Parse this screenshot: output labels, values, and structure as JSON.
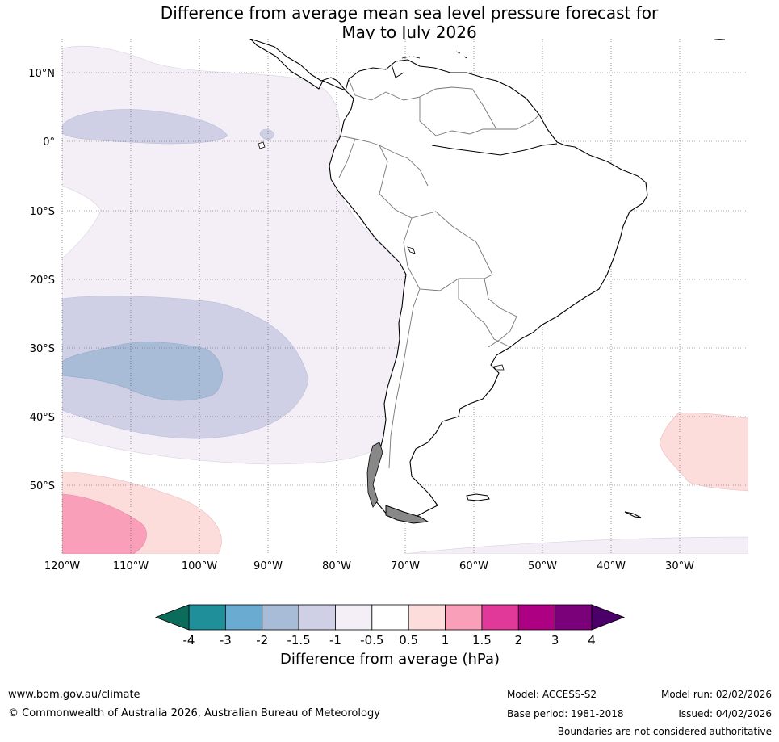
{
  "title": {
    "line1": "Difference from average mean sea level pressure forecast for",
    "line2": "May to July 2026"
  },
  "map": {
    "lat_labels": [
      "10°N",
      "0°",
      "10°S",
      "20°S",
      "30°S",
      "40°S",
      "50°S"
    ],
    "lon_labels": [
      "120°W",
      "110°W",
      "100°W",
      "90°W",
      "80°W",
      "70°W",
      "60°W",
      "50°W",
      "40°W",
      "30°W"
    ],
    "lat_values": [
      10,
      0,
      -10,
      -20,
      -30,
      -40,
      -50
    ],
    "lon_values": [
      -120,
      -110,
      -100,
      -90,
      -80,
      -70,
      -60,
      -50,
      -40,
      -30
    ],
    "extent": {
      "lon_min": -120,
      "lon_max": -20,
      "lat_min": -60,
      "lat_max": 15
    },
    "region": "South America and adjacent oceans"
  },
  "colorbar": {
    "label": "Difference from average (hPa)",
    "ticks": [
      "-4",
      "-3",
      "-2",
      "-1.5",
      "-1",
      "-0.5",
      "0.5",
      "1",
      "1.5",
      "2",
      "3",
      "4"
    ],
    "colors": [
      "#1f9099",
      "#6aabd1",
      "#a8bcd8",
      "#cfd0e5",
      "#f4eef6",
      "#ffffff",
      "#fddcdc",
      "#f99fb9",
      "#e0399a",
      "#ad0082",
      "#7a0179"
    ],
    "under_color": "#0b6c5c",
    "over_color": "#4a0068"
  },
  "footer": {
    "website": "www.bom.gov.au/climate",
    "copyright": "© Commonwealth of Australia 2026, Australian Bureau of Meteorology",
    "model": "Model: ACCESS-S2",
    "base_period": "Base period: 1981-2018",
    "model_run": "Model run: 02/02/2026",
    "issued": "Issued: 04/02/2026",
    "boundaries": "Boundaries are not considered authoritative"
  }
}
